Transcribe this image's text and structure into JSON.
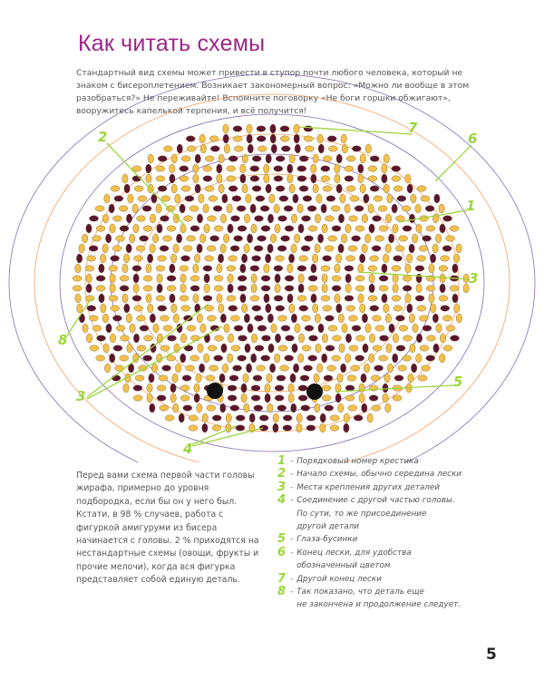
{
  "title": "Как читать схемы",
  "intro": "Стандартный вид схемы может привести в ступор почти любого человека, который не знаком с бисероплетением. Возникает закономерный вопрос: «Можно ли вообще в этом разобраться?» Не переживайте! Вспомните поговорку «Не боги горшки обжигают», вооружитесь капелькой терпения, и всё получится!",
  "body_text": "Перед вами схема первой части головы жирафа, примерно до уровня подбородка, если бы он у него был. Кстати, в 98 % случаев, работа с фигуркой амигуруми из бисера начинается с головы. 2 % приходятся на нестандартные схемы (овощи, фрукты и прочие мелочи), когда вся фигурка представляет собой единую деталь.",
  "legend": [
    {
      "num": "1",
      "text": "Порядковый номер крестика"
    },
    {
      "num": "2",
      "text": "Начало схемы, обычно середина лески"
    },
    {
      "num": "3",
      "text": "Места крепления других деталей"
    },
    {
      "num": "4",
      "text": "Соединение с другой частью головы.\nПо сути, то же присоединение\nдругой детали"
    },
    {
      "num": "5",
      "text": "Глаза-бусинки"
    },
    {
      "num": "6",
      "text": "Конец лески, для удобства\nобозначенный цветом"
    },
    {
      "num": "7",
      "text": "Другой конец лески"
    },
    {
      "num": "8",
      "text": "Так показано, что деталь еще\nне закончена и продолжение следует."
    }
  ],
  "diagram": {
    "callouts": [
      "2",
      "7",
      "6",
      "1",
      "3",
      "3",
      "8",
      "3",
      "5",
      "4"
    ],
    "colors": {
      "bead_light": "#f2c14e",
      "bead_dark": "#5a1630",
      "line_orange": "#f08a3a",
      "line_purple": "#6a4a9a",
      "callout": "#9bd63a",
      "eye": "#111111"
    }
  },
  "page_number": "5"
}
